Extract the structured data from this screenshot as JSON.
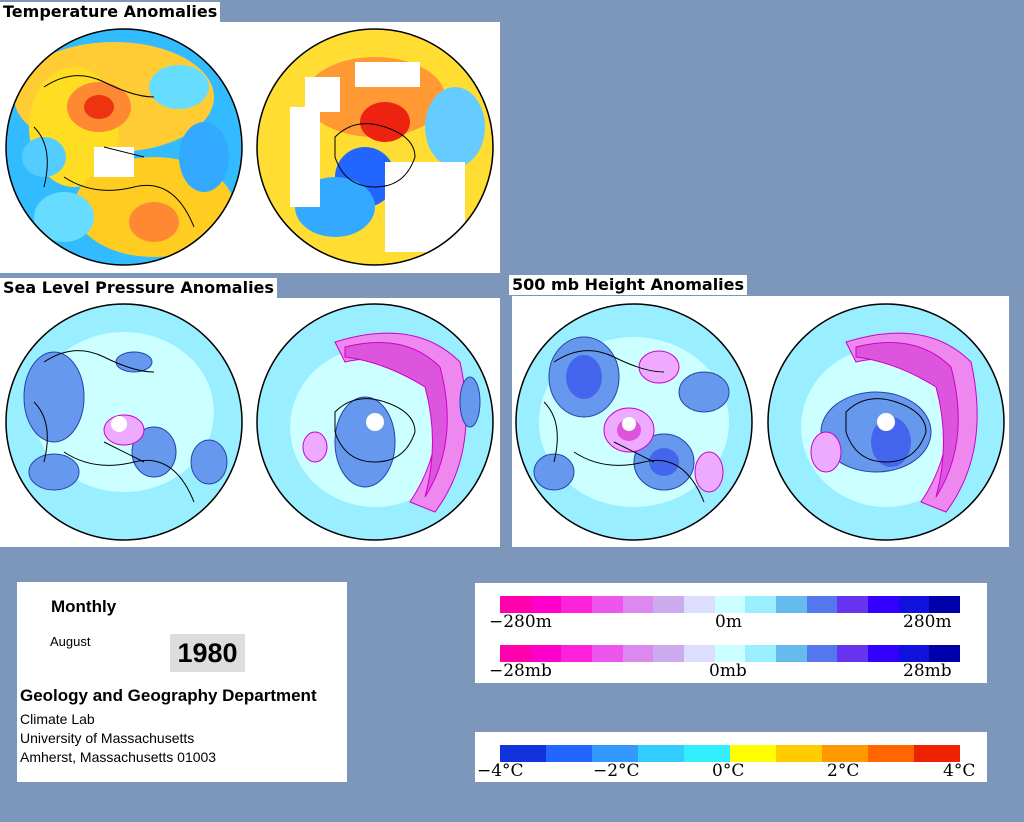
{
  "titles": {
    "temperature": "Temperature Anomalies",
    "slp": "Sea Level Pressure Anomalies",
    "height": "500 mb Height Anomalies"
  },
  "info": {
    "period": "Monthly",
    "month": "August",
    "year": "1980",
    "department": "Geology and Geography Department",
    "lab": "Climate Lab",
    "university": "University of Massachusetts",
    "address": "Amherst, Massachusetts 01003"
  },
  "legend_height": {
    "labels": [
      "−280m",
      "0m",
      "280m"
    ],
    "colors": [
      "#ff00aa",
      "#ff00cc",
      "#ff22dd",
      "#ee55ee",
      "#dd88ee",
      "#ccaaee",
      "#ddddff",
      "#ccffff",
      "#99eeff",
      "#66bbee",
      "#5577ee",
      "#6633ee",
      "#3300ff",
      "#1111dd",
      "#0000aa"
    ]
  },
  "legend_pressure": {
    "labels": [
      "−28mb",
      "0mb",
      "28mb"
    ],
    "colors": [
      "#ff00aa",
      "#ff00cc",
      "#ff22dd",
      "#ee55ee",
      "#dd88ee",
      "#ccaaee",
      "#ddddff",
      "#ccffff",
      "#99eeff",
      "#66bbee",
      "#5577ee",
      "#6633ee",
      "#3300ff",
      "#1111dd",
      "#0000aa"
    ]
  },
  "legend_temperature": {
    "labels": [
      "−4°C",
      "−2°C",
      "0°C",
      "2°C",
      "4°C"
    ],
    "colors": [
      "#1133dd",
      "#2266ff",
      "#3399ff",
      "#33ccff",
      "#33eeff",
      "#ffff00",
      "#ffcc00",
      "#ff9900",
      "#ff6600",
      "#ee2200"
    ]
  }
}
